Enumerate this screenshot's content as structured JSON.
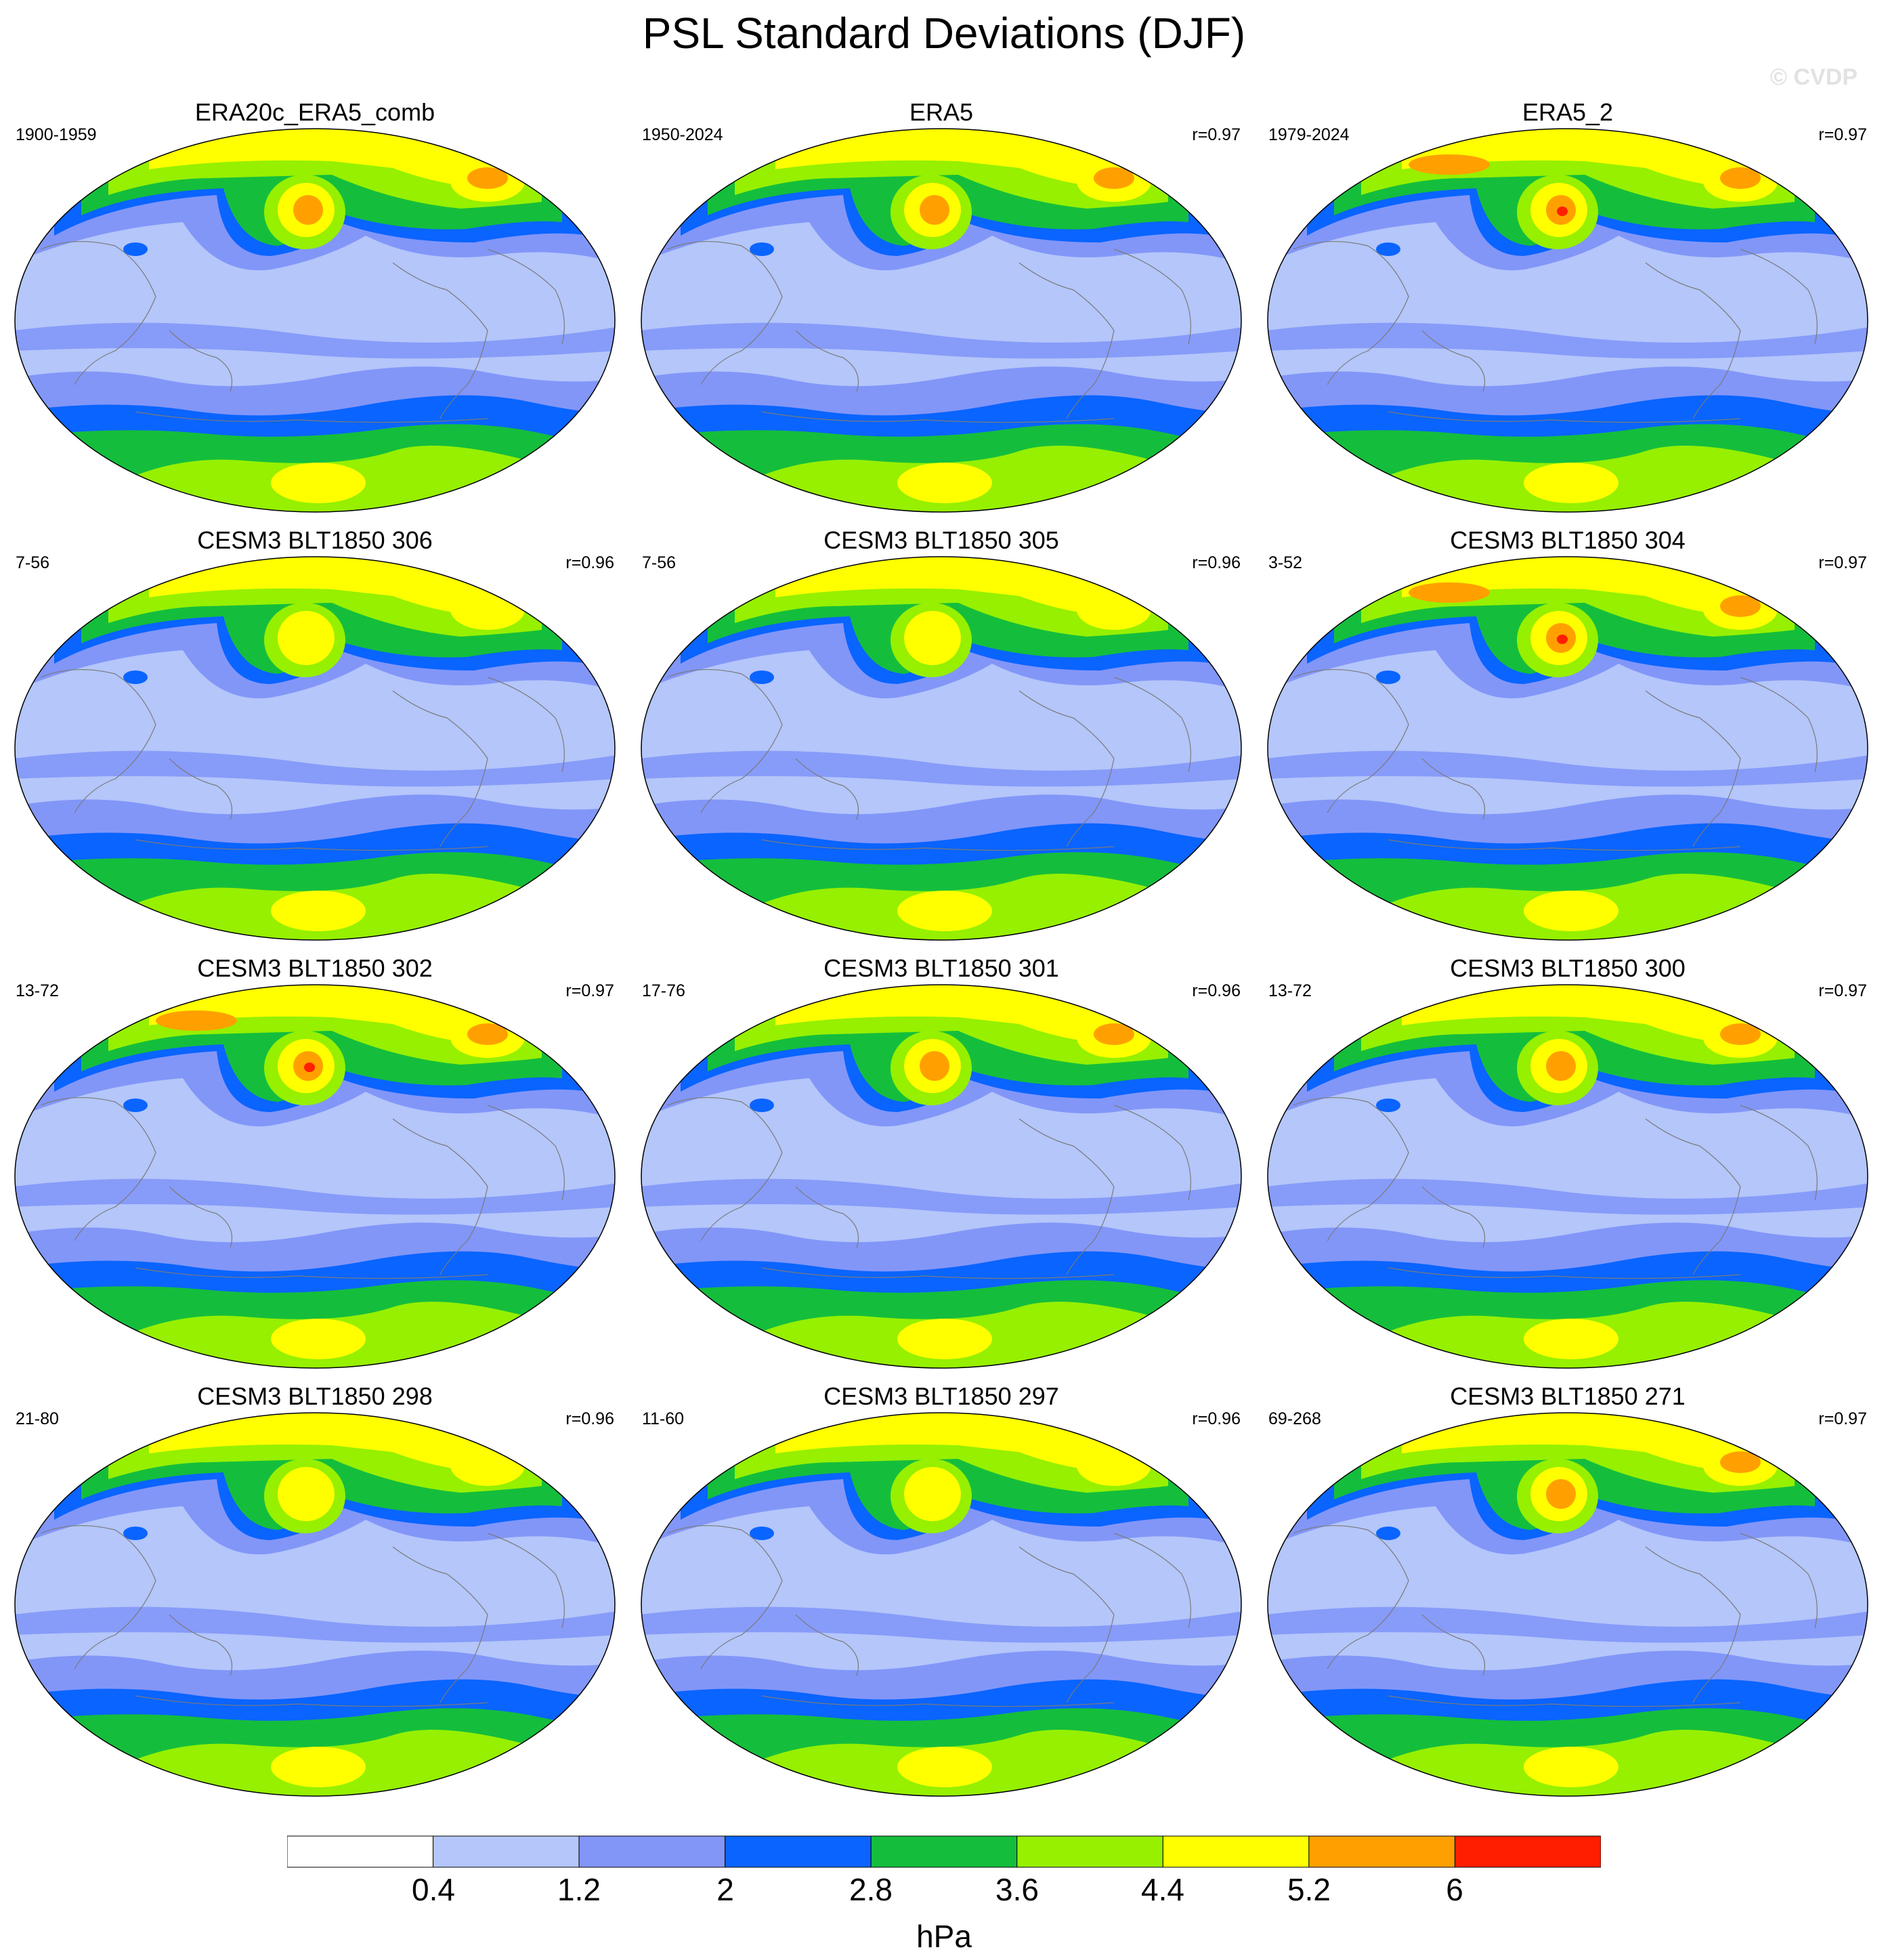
{
  "title": "PSL Standard Deviations (DJF)",
  "watermark": "© CVDP",
  "colorbar": {
    "units": "hPa",
    "ticks": [
      "0.4",
      "1.2",
      "2",
      "2.8",
      "3.6",
      "4.4",
      "5.2",
      "6"
    ],
    "colors": [
      "#ffffff",
      "#b4c6fa",
      "#8296f8",
      "#0a64ff",
      "#14be3c",
      "#96f000",
      "#ffff00",
      "#ffa000",
      "#ff1e00"
    ]
  },
  "panels": [
    {
      "title": "ERA20c_ERA5_comb",
      "period": "1900-1959",
      "corr": ""
    },
    {
      "title": "ERA5",
      "period": "1950-2024",
      "corr": "r=0.97"
    },
    {
      "title": "ERA5_2",
      "period": "1979-2024",
      "corr": "r=0.97"
    },
    {
      "title": "CESM3 BLT1850 306",
      "period": "7-56",
      "corr": "r=0.96"
    },
    {
      "title": "CESM3 BLT1850 305",
      "period": "7-56",
      "corr": "r=0.96"
    },
    {
      "title": "CESM3 BLT1850 304",
      "period": "3-52",
      "corr": "r=0.97"
    },
    {
      "title": "CESM3 BLT1850 302",
      "period": "13-72",
      "corr": "r=0.97"
    },
    {
      "title": "CESM3 BLT1850 301",
      "period": "17-76",
      "corr": "r=0.96"
    },
    {
      "title": "CESM3 BLT1850 300",
      "period": "13-72",
      "corr": "r=0.97"
    },
    {
      "title": "CESM3 BLT1850 298",
      "period": "21-80",
      "corr": "r=0.96"
    },
    {
      "title": "CESM3 BLT1850 297",
      "period": "11-60",
      "corr": "r=0.96"
    },
    {
      "title": "CESM3 BLT1850 271",
      "period": "69-268",
      "corr": "r=0.97"
    }
  ]
}
